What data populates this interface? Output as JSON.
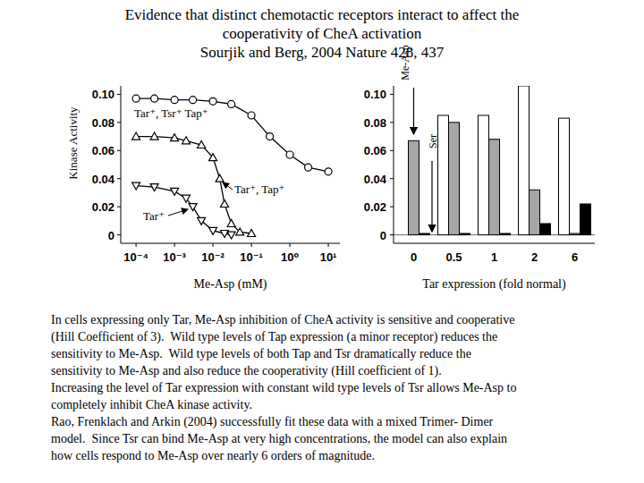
{
  "title": [
    "Evidence that distinct chemotactic receptors interact to affect the",
    "cooperativity of CheA activation",
    "Sourjik and Berg, 2004 Nature 428, 437"
  ],
  "body": [
    "In cells expressing only Tar, Me-Asp inhibition of CheA activity is sensitive and cooperative",
    "(Hill Coefficient of 3).  Wild type levels of Tap expression (a minor receptor) reduces the",
    "sensitivity to Me-Asp.  Wild type levels of both Tap and Tsr dramatically reduce the",
    "sensitivity to Me-Asp and also reduce the cooperativity (Hill coefficient of 1).",
    "Increasing the level of Tar expression with constant wild type levels of Tsr allows Me-Asp to",
    "completely inhibit CheA kinase activity.",
    "Rao, Frenklach and Arkin (2004) successfully fit these data with a mixed Trimer- Dimer",
    "model.  Since Tsr can bind Me-Asp at very high concentrations, the model can also explain",
    "how cells respond to Me-Asp over nearly 6 orders of magnitude."
  ],
  "chart_data": [
    {
      "type": "line",
      "x_label": "Me-Asp (mM)",
      "y_label": "Kinase Activity",
      "log": "x",
      "grid": false,
      "xlim": [
        4e-05,
        20
      ],
      "ylim": [
        -0.006,
        0.106
      ],
      "xticks": [
        {
          "value": 0.0001,
          "label": "10⁻⁴"
        },
        {
          "value": 0.001,
          "label": "10⁻³"
        },
        {
          "value": 0.01,
          "label": "10⁻²"
        },
        {
          "value": 0.1,
          "label": "10⁻¹"
        },
        {
          "value": 1,
          "label": "10⁰"
        },
        {
          "value": 10,
          "label": "10¹"
        }
      ],
      "yticks": [
        0,
        0.02,
        0.04,
        0.06,
        0.08,
        {
          "value": 0.1,
          "label": "0.10"
        }
      ],
      "series": [
        {
          "name": "Tar⁺, Tsr⁺ Tap⁺",
          "color": "#000000",
          "marker": "circle",
          "line_style": "solid",
          "x": [
            0.0001,
            0.0003,
            0.001,
            0.003,
            0.01,
            0.03,
            0.1,
            0.3,
            1,
            3,
            10
          ],
          "values": [
            0.097,
            0.097,
            0.096,
            0.096,
            0.095,
            0.093,
            0.085,
            0.07,
            0.057,
            0.048,
            0.045
          ]
        },
        {
          "name": "Tar⁺, Tap⁺",
          "color": "#000000",
          "marker": "triangle",
          "line_style": "solid",
          "x": [
            0.0001,
            0.0003,
            0.001,
            0.002,
            0.005,
            0.01,
            0.015,
            0.02,
            0.03,
            0.05,
            0.1
          ],
          "values": [
            0.07,
            0.07,
            0.069,
            0.067,
            0.064,
            0.055,
            0.04,
            0.022,
            0.008,
            0.002,
            0.001
          ]
        },
        {
          "name": "Tar⁺",
          "color": "#000000",
          "marker": "triangle-down",
          "line_style": "solid",
          "x": [
            0.0001,
            0.0003,
            0.001,
            0.002,
            0.003,
            0.005,
            0.01,
            0.02,
            0.03
          ],
          "values": [
            0.035,
            0.034,
            0.031,
            0.026,
            0.02,
            0.01,
            0.003,
            0.001,
            0.0
          ]
        }
      ]
    },
    {
      "type": "bar",
      "x_label": "Tar expression (fold normal)",
      "grid": false,
      "categories": [
        "0",
        "0.5",
        "1",
        "2",
        "6"
      ],
      "ylim": [
        -0.006,
        0.106
      ],
      "yticks": [
        0,
        0.02,
        0.04,
        0.06,
        0.08,
        {
          "value": 0.1,
          "label": "0.10"
        }
      ],
      "annotations": [
        "Me-Asp",
        "Ser"
      ],
      "series": [
        {
          "color": "#ffffff",
          "values": [
            null,
            0.085,
            0.085,
            0.106,
            0.083
          ]
        },
        {
          "color": "#a6a6a6",
          "values": [
            0.067,
            0.08,
            0.068,
            0.032,
            0.001
          ]
        },
        {
          "color": "#000000",
          "values": [
            0.001,
            0.001,
            0.001,
            0.008,
            0.022
          ]
        }
      ]
    }
  ]
}
